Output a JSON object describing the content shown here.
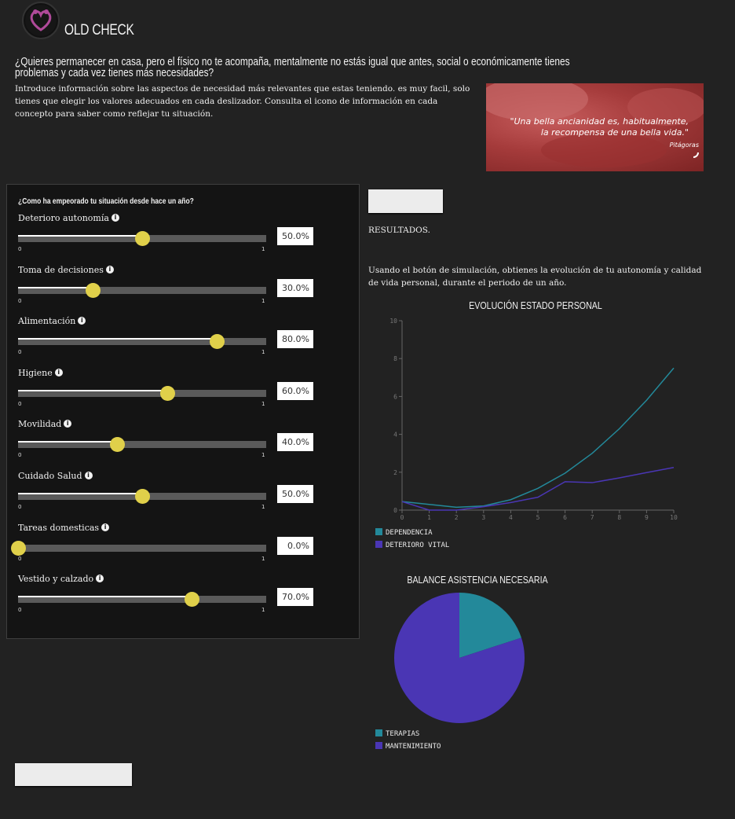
{
  "header": {
    "title": "OLD CHECK",
    "question": "¿Quieres permanecer en casa, pero el físico no te acompaña, mentalmente no estás igual que antes, social o económicamente tienes problemas y cada vez tienes más necesidades?",
    "intro": "Introduce información sobre las aspectos de necesidad más relevantes que estas teniendo. es muy facil, solo tienes que elegir los valores adecuados en cada deslizador. Consulta el icono de información en cada concepto para saber como reflejar tu situación."
  },
  "banner": {
    "quote_line1": "\"Una bella ancianidad es, habitualmente,",
    "quote_line2": "la recompensa de una bella vida.\"",
    "author": "Pitágoras"
  },
  "panel": {
    "title": "¿Como ha empeorado tu situación desde hace un año?",
    "sliders": [
      {
        "label": "Deterioro autonomía",
        "value": 0.5,
        "display": "50.0%",
        "min": "0",
        "max": "1"
      },
      {
        "label": "Toma de decisiones",
        "value": 0.3,
        "display": "30.0%",
        "min": "0",
        "max": "1"
      },
      {
        "label": "Alimentación",
        "value": 0.8,
        "display": "80.0%",
        "min": "0",
        "max": "1"
      },
      {
        "label": "Higiene",
        "value": 0.6,
        "display": "60.0%",
        "min": "0",
        "max": "1"
      },
      {
        "label": "Movilidad",
        "value": 0.4,
        "display": "40.0%",
        "min": "0",
        "max": "1"
      },
      {
        "label": "Cuidado Salud",
        "value": 0.5,
        "display": "50.0%",
        "min": "0",
        "max": "1"
      },
      {
        "label": "Tareas domesticas",
        "value": 0.0,
        "display": "0.0%",
        "min": "0",
        "max": "1"
      },
      {
        "label": "Vestido y calzado",
        "value": 0.7,
        "display": "70.0%",
        "min": "0",
        "max": "1"
      }
    ],
    "info_glyph": "i"
  },
  "results": {
    "simulate_button": "",
    "results_label": "RESULTADOS.",
    "simulation_text": "Usando el botón de simulación, obtienes la evolución de tu autonomía y calidad de vida personal, durante el periodo de un año.",
    "restart_button": ""
  },
  "icons": {
    "logo": "heart-hands-logo",
    "info": "info-icon"
  },
  "colors": {
    "background": "#222222",
    "panel": "#141414",
    "knob": "#e0d04a",
    "dependencia": "#23899a",
    "deterioro_vital": "#4a36b4"
  },
  "chart_data": [
    {
      "type": "line",
      "title": "EVOLUCIÓN ESTADO PERSONAL",
      "x": [
        0,
        1,
        2,
        3,
        4,
        5,
        6,
        7,
        8,
        9,
        10
      ],
      "xlim": [
        0,
        10
      ],
      "ylim": [
        0,
        10
      ],
      "yticks": [
        0,
        2,
        4,
        6,
        8,
        10
      ],
      "xlabel": "",
      "ylabel": "",
      "grid": false,
      "legend": "bottom-left",
      "series": [
        {
          "name": "DEPENDENCIA",
          "color": "#23899a",
          "values": [
            0.45,
            0.3,
            0.15,
            0.22,
            0.55,
            1.15,
            1.95,
            3.0,
            4.3,
            5.8,
            7.5
          ]
        },
        {
          "name": "DETERIORO VITAL",
          "color": "#4a36b4",
          "values": [
            0.45,
            0.0,
            0.0,
            0.18,
            0.4,
            0.68,
            1.5,
            1.45,
            1.7,
            1.98,
            2.25
          ]
        }
      ]
    },
    {
      "type": "pie",
      "title": "BALANCE ASISTENCIA NECESARIA",
      "legend": "bottom-left",
      "labels": [
        "TERAPIAS",
        "MANTENIMIENTO"
      ],
      "values": [
        20,
        80
      ],
      "colors": [
        "#23899a",
        "#4a36b4"
      ]
    }
  ]
}
